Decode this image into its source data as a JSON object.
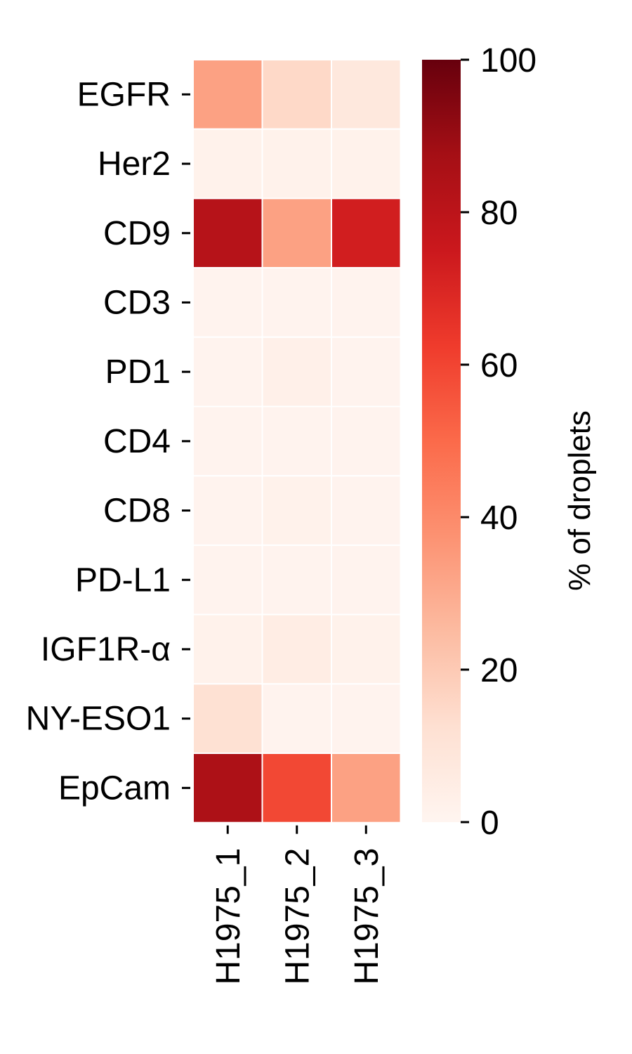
{
  "chart_data": {
    "type": "heatmap",
    "title": "",
    "xlabel": "",
    "ylabel": "",
    "rows": [
      "EGFR",
      "Her2",
      "CD9",
      "CD3",
      "PD1",
      "CD4",
      "CD8",
      "PD-L1",
      "IGF1R-α",
      "NY-ESO1",
      "EpCam"
    ],
    "columns": [
      "H1975_1",
      "H1975_2",
      "H1975_3"
    ],
    "values": [
      [
        33,
        15,
        8
      ],
      [
        2,
        2,
        2
      ],
      [
        82,
        33,
        73
      ],
      [
        1,
        1,
        1
      ],
      [
        1,
        3,
        1
      ],
      [
        1,
        1,
        1
      ],
      [
        1,
        2,
        1
      ],
      [
        1,
        1,
        1
      ],
      [
        2,
        5,
        2
      ],
      [
        12,
        1,
        1
      ],
      [
        85,
        59,
        33
      ]
    ],
    "colorbar": {
      "label": "% of droplets",
      "range": [
        0,
        100
      ],
      "ticks": [
        0,
        20,
        40,
        60,
        80,
        100
      ],
      "colormap": [
        "#fff5f0",
        "#fee0d2",
        "#fcbba1",
        "#fc9272",
        "#fb6a4a",
        "#ef3b2c",
        "#cb181d",
        "#a50f15",
        "#67000d"
      ]
    },
    "cell_border_color": "#ffffff"
  }
}
